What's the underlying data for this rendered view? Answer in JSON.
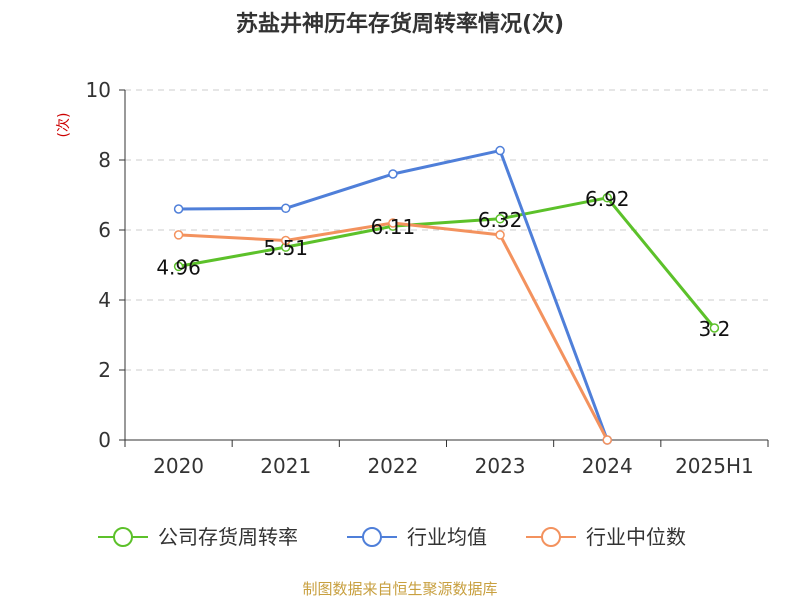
{
  "title": "苏盐井神历年存货周转率情况(次)",
  "source": "制图数据来自恒生聚源数据库",
  "chart_data": {
    "type": "line",
    "title": "苏盐井神历年存货周转率情况(次)",
    "ylabel": "(次)",
    "categories": [
      "2020",
      "2021",
      "2022",
      "2023",
      "2024",
      "2025H1"
    ],
    "ylim": [
      0,
      10
    ],
    "yticks": [
      0,
      2,
      4,
      6,
      8,
      10
    ],
    "grid": true,
    "legend_position": "bottom",
    "series": [
      {
        "name": "公司存货周转率",
        "color": "#5cc12a",
        "show_labels": true,
        "values": [
          4.96,
          5.51,
          6.11,
          6.32,
          6.92,
          3.2
        ]
      },
      {
        "name": "行业均值",
        "color": "#4f7fd9",
        "show_labels": false,
        "values": [
          6.6,
          6.62,
          7.6,
          8.27,
          0,
          null
        ]
      },
      {
        "name": "行业中位数",
        "color": "#f3925e",
        "show_labels": false,
        "values": [
          5.86,
          5.7,
          6.2,
          5.86,
          0,
          null
        ]
      }
    ]
  }
}
